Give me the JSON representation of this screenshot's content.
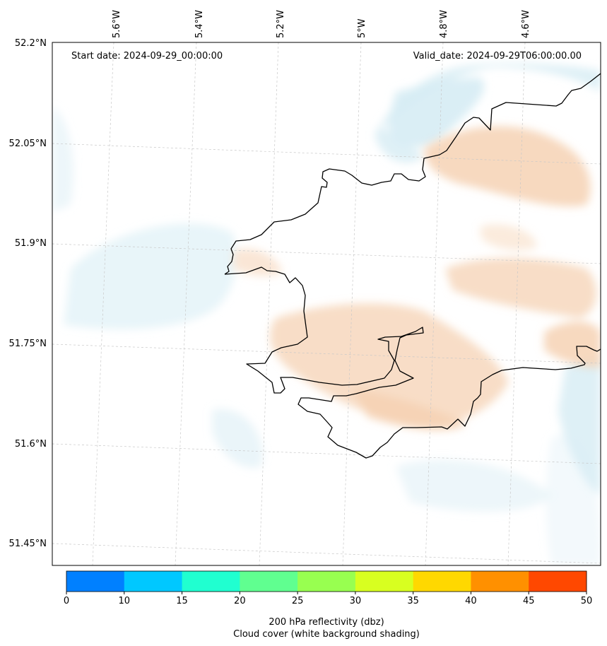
{
  "header": {
    "start_date": "Start date: 2024-09-29_00:00:00",
    "valid_date": "Valid_date: 2024-09-29T06:00:00.00"
  },
  "axes": {
    "lat_labels": [
      "52.2°N",
      "52.05°N",
      "51.9°N",
      "51.75°N",
      "51.6°N",
      "51.45°N"
    ],
    "lon_labels": [
      "5.6°W",
      "5.4°W",
      "5.2°W",
      "5°W",
      "4.8°W",
      "4.6°W"
    ]
  },
  "colorbar": {
    "ticks": [
      "0",
      "10",
      "15",
      "20",
      "25",
      "30",
      "35",
      "40",
      "45",
      "50"
    ],
    "colors": [
      "#0080ff",
      "#00c8ff",
      "#20ffd0",
      "#60ff90",
      "#98ff50",
      "#d8ff20",
      "#ffd800",
      "#ff9000",
      "#ff4800"
    ],
    "label_line1": "200 hPa reflectivity (dbz)",
    "label_line2": "Cloud cover (white background shading)"
  },
  "colors": {
    "warm_anomaly": "#f6d2b4",
    "cool_anomaly": "#d6ecf4",
    "coastline": "#000000",
    "gridline": "#c8c8c8"
  }
}
